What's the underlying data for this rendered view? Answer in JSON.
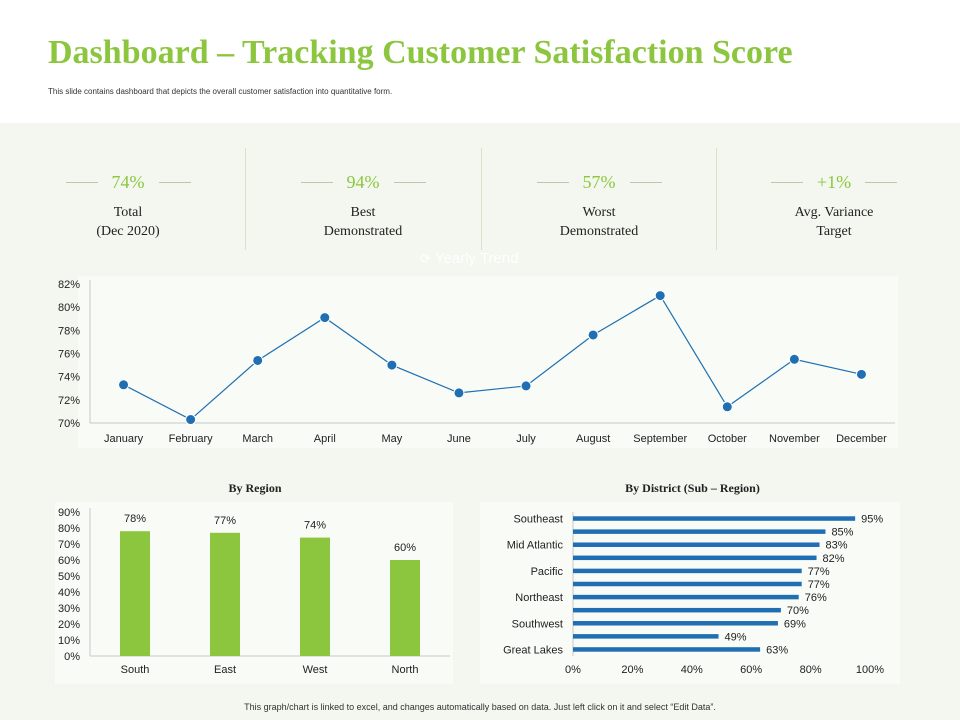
{
  "page": {
    "title": "Dashboard – Tracking Customer Satisfaction Score",
    "subtitle": "This slide contains dashboard that depicts the overall customer satisfaction into quantitative form.",
    "watermark": "Yearly Trend",
    "footer": "This graph/chart is linked to excel, and changes automatically based on data. Just left click on it and select “Edit Data”.",
    "accent_color": "#8cc63f",
    "line_color": "#1f6fb2"
  },
  "kpis": [
    {
      "value": "74%",
      "label": "Total\n(Dec 2020)"
    },
    {
      "value": "94%",
      "label": "Best\nDemonstrated"
    },
    {
      "value": "57%",
      "label": "Worst\nDemonstrated"
    },
    {
      "value": "+1%",
      "label": "Avg. Variance\nTarget"
    }
  ],
  "chart_data": [
    {
      "type": "line",
      "title": "Yearly Trend",
      "categories": [
        "January",
        "February",
        "March",
        "April",
        "May",
        "June",
        "July",
        "August",
        "September",
        "October",
        "November",
        "December"
      ],
      "values": [
        73.3,
        70.3,
        75.4,
        79.1,
        75.0,
        72.6,
        73.2,
        77.6,
        81.0,
        71.4,
        75.5,
        74.2
      ],
      "ylim": [
        70,
        82
      ],
      "yticks": [
        70,
        72,
        74,
        76,
        78,
        80,
        82
      ],
      "ytick_labels": [
        "70%",
        "72%",
        "74%",
        "76%",
        "78%",
        "80%",
        "82%"
      ],
      "grid": false
    },
    {
      "type": "bar",
      "title": "By Region",
      "categories": [
        "South",
        "East",
        "West",
        "North"
      ],
      "values": [
        78,
        77,
        74,
        60
      ],
      "data_labels": [
        "78%",
        "77%",
        "74%",
        "60%"
      ],
      "ylim": [
        0,
        90
      ],
      "yticks": [
        0,
        10,
        20,
        30,
        40,
        50,
        60,
        70,
        80,
        90
      ],
      "ytick_labels": [
        "0%",
        "10%",
        "20%",
        "30%",
        "40%",
        "50%",
        "60%",
        "70%",
        "80%",
        "90%"
      ]
    },
    {
      "type": "bar",
      "orientation": "horizontal",
      "title": "By District (Sub – Region)",
      "categories": [
        "Southeast",
        "",
        "Mid Atlantic",
        "",
        "Pacific",
        "",
        "Northeast",
        "",
        "Southwest",
        "",
        "Great Lakes"
      ],
      "values": [
        95,
        85,
        83,
        82,
        77,
        77,
        76,
        70,
        69,
        49,
        63
      ],
      "data_labels": [
        "95%",
        "85%",
        "83%",
        "82%",
        "77%",
        "77%",
        "76%",
        "70%",
        "69%",
        "49%",
        "63%"
      ],
      "xlim": [
        0,
        100
      ],
      "xticks": [
        0,
        20,
        40,
        60,
        80,
        100
      ],
      "xtick_labels": [
        "0%",
        "20%",
        "40%",
        "60%",
        "80%",
        "100%"
      ]
    }
  ]
}
